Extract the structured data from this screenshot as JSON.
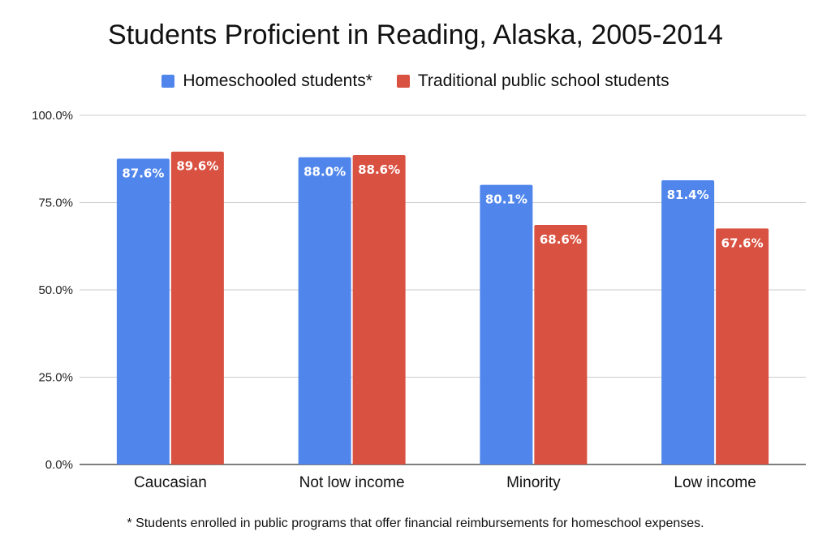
{
  "chart_data": {
    "type": "bar",
    "title": "Students Proficient in Reading, Alaska, 2005-2014",
    "categories": [
      "Caucasian",
      "Not low income",
      "Minority",
      "Low income"
    ],
    "series": [
      {
        "name": "Homeschooled students*",
        "color": "#5086ec",
        "values": [
          87.6,
          88.0,
          80.1,
          81.4
        ],
        "labels": [
          "87.6%",
          "88.0%",
          "80.1%",
          "81.4%"
        ]
      },
      {
        "name": "Traditional public school students",
        "color": "#d95140",
        "values": [
          89.6,
          88.6,
          68.6,
          67.6
        ],
        "labels": [
          "89.6%",
          "88.6%",
          "68.6%",
          "67.6%"
        ]
      }
    ],
    "yticks": [
      0,
      25,
      50,
      75,
      100
    ],
    "ytick_labels": [
      "0.0%",
      "25.0%",
      "50.0%",
      "75.0%",
      "100.0%"
    ],
    "ylim": [
      0,
      100
    ],
    "xlabel": "",
    "ylabel": "",
    "grid": true,
    "legend_position": "top-center"
  },
  "footnote": "* Students enrolled in public programs that offer financial reimbursements for homeschool expenses.",
  "colors": {
    "gridline": "#cccccc",
    "axis": "#333333"
  }
}
